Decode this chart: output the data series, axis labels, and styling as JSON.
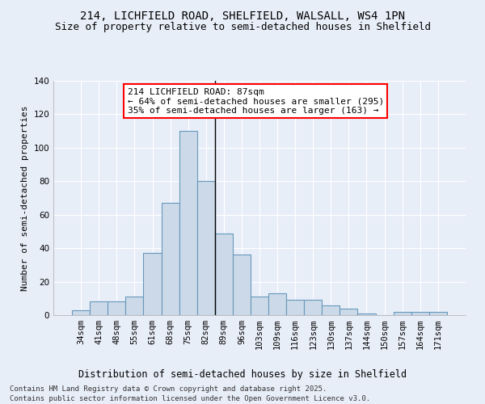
{
  "title": "214, LICHFIELD ROAD, SHELFIELD, WALSALL, WS4 1PN",
  "subtitle": "Size of property relative to semi-detached houses in Shelfield",
  "xlabel": "Distribution of semi-detached houses by size in Shelfield",
  "ylabel": "Number of semi-detached properties",
  "categories": [
    "34sqm",
    "41sqm",
    "48sqm",
    "55sqm",
    "61sqm",
    "68sqm",
    "75sqm",
    "82sqm",
    "89sqm",
    "96sqm",
    "103sqm",
    "109sqm",
    "116sqm",
    "123sqm",
    "130sqm",
    "137sqm",
    "144sqm",
    "150sqm",
    "157sqm",
    "164sqm",
    "171sqm"
  ],
  "values": [
    3,
    8,
    8,
    11,
    37,
    67,
    110,
    80,
    49,
    36,
    11,
    13,
    9,
    9,
    6,
    4,
    1,
    0,
    2,
    2,
    2
  ],
  "bar_color": "#ccd9e8",
  "bar_edge_color": "#6699bb",
  "vline_color": "black",
  "annotation_text": "214 LICHFIELD ROAD: 87sqm\n← 64% of semi-detached houses are smaller (295)\n35% of semi-detached houses are larger (163) →",
  "annotation_box_color": "white",
  "annotation_box_edge_color": "red",
  "ylim": [
    0,
    140
  ],
  "yticks": [
    0,
    20,
    40,
    60,
    80,
    100,
    120,
    140
  ],
  "bg_color": "#e8eef8",
  "grid_color": "#ffffff",
  "footnote": "Contains HM Land Registry data © Crown copyright and database right 2025.\nContains public sector information licensed under the Open Government Licence v3.0.",
  "title_fontsize": 10,
  "subtitle_fontsize": 9,
  "xlabel_fontsize": 8.5,
  "ylabel_fontsize": 8,
  "tick_fontsize": 7.5,
  "annotation_fontsize": 8,
  "footnote_fontsize": 6.5
}
